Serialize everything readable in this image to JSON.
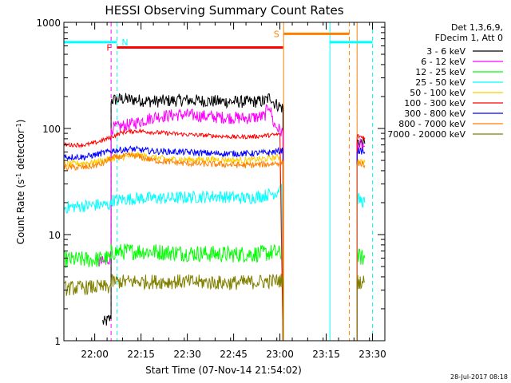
{
  "chart_data": {
    "type": "line",
    "title": "HESSI Observing Summary Count Rates",
    "xlabel": "Start Time (07-Nov-14 21:54:02)",
    "ylabel_main": "Count Rate (s",
    "ylabel_sup1": "-1",
    "ylabel_mid": " detector",
    "ylabel_sup2": "-1",
    "ylabel_end": ")",
    "y_scale": "log",
    "ylim": [
      1,
      1000
    ],
    "xlim_minutes": [
      -4,
      100
    ],
    "x_ticks": [
      {
        "label": "22:00",
        "min": 6
      },
      {
        "label": "22:15",
        "min": 21
      },
      {
        "label": "22:30",
        "min": 36
      },
      {
        "label": "22:45",
        "min": 51
      },
      {
        "label": "23:00",
        "min": 66
      },
      {
        "label": "23:15",
        "min": 81
      },
      {
        "label": "23:30",
        "min": 96
      }
    ],
    "y_ticks": [
      {
        "label": "1",
        "v": 1
      },
      {
        "label": "10",
        "v": 10
      },
      {
        "label": "100",
        "v": 100
      },
      {
        "label": "1000",
        "v": 1000
      }
    ],
    "legend": {
      "header1": "Det 1,3,6,9,",
      "header2": "FDecim 1, Att 0"
    },
    "series": [
      {
        "name": "3 - 6 keV",
        "color": "#000000",
        "segments": [
          [
            [
              8.6,
              1.5
            ],
            [
              9.6,
              1.5
            ],
            [
              10.6,
              1.6
            ],
            [
              11.3,
              1.6
            ],
            [
              11.3,
              185
            ],
            [
              15,
              190
            ],
            [
              25,
              180
            ],
            [
              35,
              185
            ],
            [
              45,
              180
            ],
            [
              55,
              178
            ],
            [
              61,
              180
            ],
            [
              63,
              200
            ],
            [
              64,
              175
            ],
            [
              67,
              155
            ],
            [
              67,
              1
            ]
          ],
          [
            [
              91,
              1
            ],
            [
              91,
              75
            ],
            [
              93.5,
              72
            ]
          ]
        ]
      },
      {
        "name": "6 - 12 keV",
        "color": "#ff00ff",
        "segments": [
          [
            [
              7,
              5.5
            ],
            [
              10,
              5.5
            ],
            [
              11.3,
              6.5
            ],
            [
              11.3,
              100
            ],
            [
              18,
              110
            ],
            [
              26,
              130
            ],
            [
              35,
              135
            ],
            [
              45,
              128
            ],
            [
              55,
              125
            ],
            [
              61,
              130
            ],
            [
              62.5,
              170
            ],
            [
              64,
              110
            ],
            [
              67,
              90
            ],
            [
              67,
              1
            ]
          ],
          [
            [
              91,
              1
            ],
            [
              91,
              70
            ],
            [
              93.5,
              68
            ]
          ]
        ]
      },
      {
        "name": "12 - 25 keV",
        "color": "#00ff00",
        "segments": [
          [
            [
              -4,
              5.8
            ],
            [
              6,
              5.8
            ],
            [
              10,
              6.0
            ],
            [
              11.3,
              6.0
            ],
            [
              11.3,
              6.8
            ],
            [
              20,
              7.0
            ],
            [
              35,
              6.7
            ],
            [
              50,
              6.5
            ],
            [
              60,
              6.6
            ],
            [
              64,
              6.8
            ],
            [
              67,
              6.5
            ],
            [
              67,
              1
            ]
          ],
          [
            [
              91,
              1
            ],
            [
              91,
              6.2
            ],
            [
              93.5,
              6.0
            ]
          ]
        ]
      },
      {
        "name": "25 - 50 keV",
        "color": "#00ffff",
        "segments": [
          [
            [
              -4,
              18
            ],
            [
              6,
              19
            ],
            [
              10,
              19
            ],
            [
              11.3,
              19
            ],
            [
              11.3,
              21
            ],
            [
              20,
              22
            ],
            [
              30,
              22
            ],
            [
              45,
              23
            ],
            [
              55,
              22
            ],
            [
              60,
              23
            ],
            [
              65,
              25
            ],
            [
              66.5,
              30
            ],
            [
              67,
              1
            ]
          ],
          [
            [
              91,
              1
            ],
            [
              91,
              22
            ],
            [
              93.5,
              20
            ]
          ]
        ]
      },
      {
        "name": "50 - 100 keV",
        "color": "#ffcc00",
        "segments": [
          [
            [
              -4,
              46
            ],
            [
              6,
              48
            ],
            [
              11.3,
              52
            ],
            [
              20,
              56
            ],
            [
              30,
              51
            ],
            [
              45,
              51
            ],
            [
              55,
              50
            ],
            [
              62,
              52
            ],
            [
              66,
              54
            ],
            [
              67,
              1
            ]
          ],
          [
            [
              91,
              1
            ],
            [
              91,
              50
            ],
            [
              93.5,
              48
            ]
          ]
        ]
      },
      {
        "name": "100 - 300 keV",
        "color": "#ff0000",
        "segments": [
          [
            [
              -4,
              70
            ],
            [
              3,
              70
            ],
            [
              6,
              73
            ],
            [
              10,
              80
            ],
            [
              15,
              92
            ],
            [
              20,
              95
            ],
            [
              25,
              92
            ],
            [
              35,
              88
            ],
            [
              45,
              85
            ],
            [
              52,
              83
            ],
            [
              58,
              84
            ],
            [
              62,
              86
            ],
            [
              66,
              88
            ],
            [
              67,
              1
            ]
          ],
          [
            [
              91,
              1
            ],
            [
              91,
              85
            ],
            [
              93.5,
              82
            ]
          ]
        ]
      },
      {
        "name": "300 - 800 keV",
        "color": "#0000ff",
        "segments": [
          [
            [
              -4,
              54
            ],
            [
              3,
              54
            ],
            [
              8,
              58
            ],
            [
              12,
              62
            ],
            [
              18,
              64
            ],
            [
              25,
              61
            ],
            [
              35,
              60
            ],
            [
              45,
              58
            ],
            [
              55,
              58
            ],
            [
              62,
              59
            ],
            [
              67,
              62
            ],
            [
              67,
              1
            ]
          ],
          [
            [
              91,
              1
            ],
            [
              91,
              62
            ],
            [
              93.5,
              60
            ]
          ]
        ]
      },
      {
        "name": "800 - 7000 keV",
        "color": "#ff8000",
        "segments": [
          [
            [
              -4,
              43
            ],
            [
              3,
              43
            ],
            [
              8,
              46
            ],
            [
              12,
              53
            ],
            [
              18,
              56
            ],
            [
              25,
              50
            ],
            [
              35,
              47
            ],
            [
              45,
              46
            ],
            [
              55,
              45
            ],
            [
              62,
              46
            ],
            [
              67,
              48
            ],
            [
              67,
              1
            ]
          ],
          [
            [
              91,
              1
            ],
            [
              91,
              48
            ],
            [
              93.5,
              45
            ]
          ]
        ]
      },
      {
        "name": "7000 - 20000 keV",
        "color": "#808000",
        "segments": [
          [
            [
              -4,
              3.1
            ],
            [
              6,
              3.2
            ],
            [
              10,
              3.2
            ],
            [
              11.3,
              3.2
            ],
            [
              11.3,
              3.6
            ],
            [
              20,
              3.6
            ],
            [
              35,
              3.6
            ],
            [
              50,
              3.5
            ],
            [
              60,
              3.6
            ],
            [
              67,
              3.7
            ],
            [
              67,
              1
            ]
          ],
          [
            [
              91,
              1
            ],
            [
              91,
              3.6
            ],
            [
              93.5,
              3.6
            ]
          ]
        ]
      }
    ],
    "annotations": {
      "night_bar": {
        "label": "N",
        "color": "#00ffff",
        "y": 650,
        "segments": [
          [
            -4,
            13.2
          ],
          [
            82.2,
            96
          ]
        ],
        "lines_solid": [
          -4,
          82.2
        ],
        "lines_dashed": [
          13.2,
          96
        ]
      },
      "flare_bar": {
        "label": "F",
        "color": "#ff0000",
        "y": 580,
        "segments": [
          [
            13.2,
            67
          ]
        ]
      },
      "saa_bar": {
        "label": "S",
        "color": "#ff8000",
        "y": 780,
        "segments": [
          [
            67.2,
            88.5
          ]
        ],
        "lines_solid": [
          67.2,
          91
        ],
        "lines_dashed": [
          88.5
        ]
      },
      "attenuator_line": {
        "color": "#ff00ff",
        "x": 11.3
      }
    }
  },
  "footer": {
    "timestamp": "28-Jul-2017 08:18"
  }
}
